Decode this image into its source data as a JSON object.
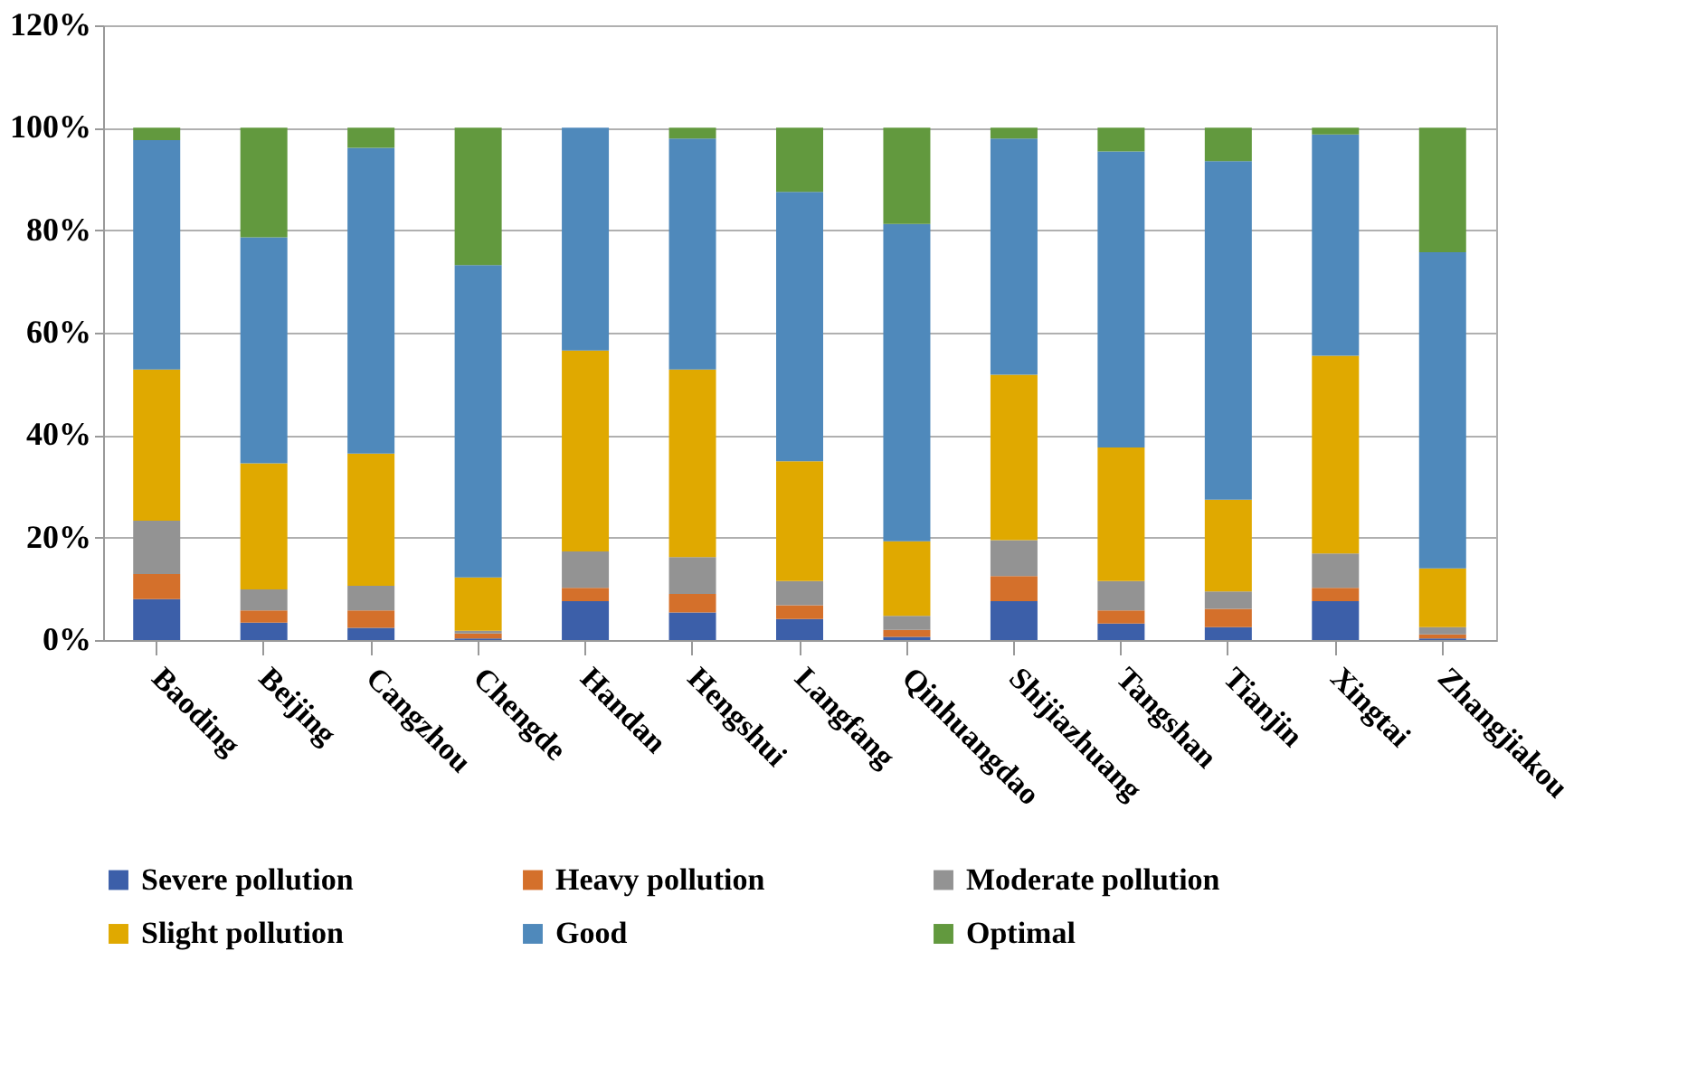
{
  "chart_data": {
    "type": "bar",
    "stacked": true,
    "categories": [
      "Baoding",
      "Beijing",
      "Cangzhou",
      "Chengde",
      "Handan",
      "Hengshui",
      "Langfang",
      "Qinhuangdao",
      "Shijiazhuang",
      "Tangshan",
      "Tianjin",
      "Xingtai",
      "Zhangjiakou"
    ],
    "series": [
      {
        "name": "Severe pollution",
        "color": "#3c5fa9",
        "values": [
          8.0,
          3.4,
          2.4,
          0.3,
          7.6,
          5.4,
          4.1,
          0.6,
          7.6,
          3.2,
          2.5,
          7.6,
          0.3
        ]
      },
      {
        "name": "Heavy pollution",
        "color": "#d4702b",
        "values": [
          4.9,
          2.4,
          3.4,
          1.0,
          2.6,
          3.6,
          2.7,
          1.4,
          4.9,
          2.6,
          3.6,
          2.6,
          0.8
        ]
      },
      {
        "name": "Moderate pollution",
        "color": "#939393",
        "values": [
          10.4,
          4.1,
          4.8,
          0.5,
          7.1,
          7.2,
          4.7,
          2.7,
          7.0,
          5.7,
          3.4,
          6.7,
          1.4
        ]
      },
      {
        "name": "Slight pollution",
        "color": "#e0a900",
        "values": [
          29.5,
          24.6,
          25.8,
          10.4,
          39.2,
          36.6,
          23.4,
          14.6,
          32.3,
          26.1,
          17.9,
          38.6,
          11.5
        ]
      },
      {
        "name": "Good",
        "color": "#4f89bb",
        "values": [
          44.8,
          44.1,
          59.7,
          61.0,
          43.5,
          45.1,
          52.6,
          61.9,
          46.1,
          57.8,
          66.1,
          43.2,
          61.7
        ]
      },
      {
        "name": "Optimal",
        "color": "#62993e",
        "values": [
          2.4,
          21.4,
          3.9,
          26.8,
          0.0,
          2.1,
          12.5,
          18.8,
          2.1,
          4.6,
          6.5,
          1.3,
          24.3
        ]
      }
    ],
    "ylim": [
      0,
      120
    ],
    "yticks": [
      {
        "value": 0,
        "label": "0%"
      },
      {
        "value": 20,
        "label": "20%"
      },
      {
        "value": 40,
        "label": "40%"
      },
      {
        "value": 60,
        "label": "60%"
      },
      {
        "value": 80,
        "label": "80%"
      },
      {
        "value": 100,
        "label": "100%"
      },
      {
        "value": 120,
        "label": "120%"
      }
    ],
    "grid": "y",
    "legend": "bottom"
  }
}
